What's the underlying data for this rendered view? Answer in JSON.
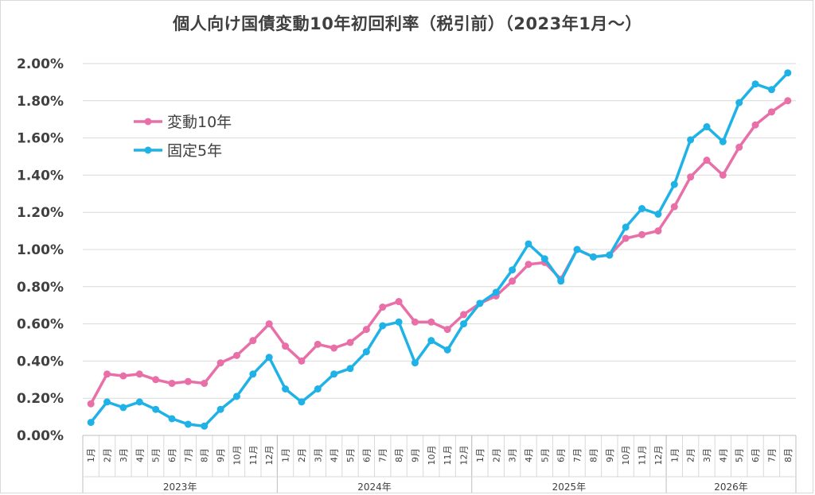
{
  "chart_data": {
    "type": "line",
    "title": "個人向け国債変動10年初回利率（税引前）（2023年1月～）",
    "ylim": [
      0,
      2.0
    ],
    "y_ticks": [
      "0.00%",
      "0.20%",
      "0.40%",
      "0.60%",
      "0.80%",
      "1.00%",
      "1.20%",
      "1.40%",
      "1.60%",
      "1.80%",
      "2.00%"
    ],
    "grid": true,
    "legend_position": "top-left",
    "years": [
      {
        "label": "2023年",
        "months": [
          "1月",
          "2月",
          "3月",
          "4月",
          "5月",
          "6月",
          "7月",
          "8月",
          "9月",
          "10月",
          "11月",
          "12月"
        ]
      },
      {
        "label": "2024年",
        "months": [
          "1月",
          "2月",
          "3月",
          "4月",
          "5月",
          "6月",
          "7月",
          "8月",
          "9月",
          "10月",
          "11月",
          "12月"
        ]
      },
      {
        "label": "2025年",
        "months": [
          "1月",
          "2月",
          "3月",
          "4月",
          "5月",
          "6月",
          "7月",
          "8月",
          "9月",
          "10月",
          "11月",
          "12月"
        ]
      },
      {
        "label": "2026年",
        "months": [
          "1月",
          "2月",
          "3月",
          "4月",
          "5月",
          "6月",
          "7月",
          "8月"
        ]
      }
    ],
    "series": [
      {
        "name": "変動10年",
        "color": "#e86fa8",
        "values": [
          0.17,
          0.33,
          0.32,
          0.33,
          0.3,
          0.28,
          0.29,
          0.28,
          0.39,
          0.43,
          0.51,
          0.6,
          0.48,
          0.4,
          0.49,
          0.47,
          0.5,
          0.57,
          0.69,
          0.72,
          0.61,
          0.61,
          0.57,
          0.65,
          0.71,
          0.75,
          0.83,
          0.92,
          0.93,
          0.84,
          1.0,
          0.96,
          0.97,
          1.06,
          1.08,
          1.1,
          1.23,
          1.39,
          1.48,
          1.4,
          1.55,
          1.67,
          1.74,
          1.8
        ]
      },
      {
        "name": "固定5年",
        "color": "#1fb2e6",
        "values": [
          0.07,
          0.18,
          0.15,
          0.18,
          0.14,
          0.09,
          0.06,
          0.05,
          0.14,
          0.21,
          0.33,
          0.42,
          0.25,
          0.18,
          0.25,
          0.33,
          0.36,
          0.45,
          0.59,
          0.61,
          0.39,
          0.51,
          0.46,
          0.6,
          0.71,
          0.77,
          0.89,
          1.03,
          0.95,
          0.83,
          1.0,
          0.96,
          0.97,
          1.12,
          1.22,
          1.19,
          1.35,
          1.59,
          1.66,
          1.58,
          1.79,
          1.89,
          1.86,
          1.95
        ]
      }
    ]
  }
}
